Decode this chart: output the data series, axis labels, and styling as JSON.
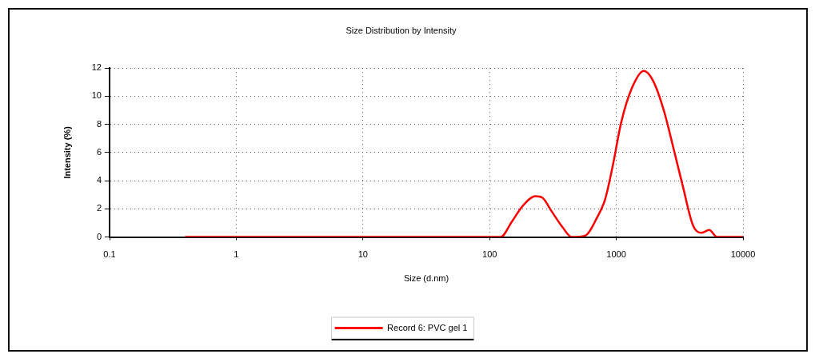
{
  "chart_data": {
    "type": "line",
    "title": "Size Distribution by Intensity",
    "xlabel": "Size (d.nm)",
    "ylabel": "Intensity (%)",
    "series": [
      {
        "name": "Record 6: PVC gel 1",
        "color": "#ff0000",
        "x": [
          0.4,
          122,
          150,
          182,
          230,
          260,
          310,
          376,
          445,
          567,
          706,
          817,
          944,
          1090,
          1330,
          1650,
          1950,
          2370,
          2880,
          3330,
          4040,
          4680,
          5410,
          6250,
          10000
        ],
        "values": [
          0,
          0,
          1.1,
          2.2,
          2.9,
          2.8,
          1.8,
          0.7,
          0,
          0.1,
          1.4,
          2.7,
          5.2,
          8.1,
          10.6,
          11.8,
          11.1,
          9.0,
          6.0,
          3.7,
          0.8,
          0.3,
          0.5,
          0,
          0
        ]
      }
    ],
    "xlim": [
      0.1,
      10000
    ],
    "xticks": [
      0.1,
      1,
      10,
      100,
      1000,
      10000
    ],
    "ylim": [
      0,
      12
    ],
    "yticks": [
      0,
      2,
      4,
      6,
      8,
      10,
      12
    ],
    "log": "x",
    "grid": true,
    "legend": "bottom",
    "marker": "none",
    "line_style": "solid"
  }
}
